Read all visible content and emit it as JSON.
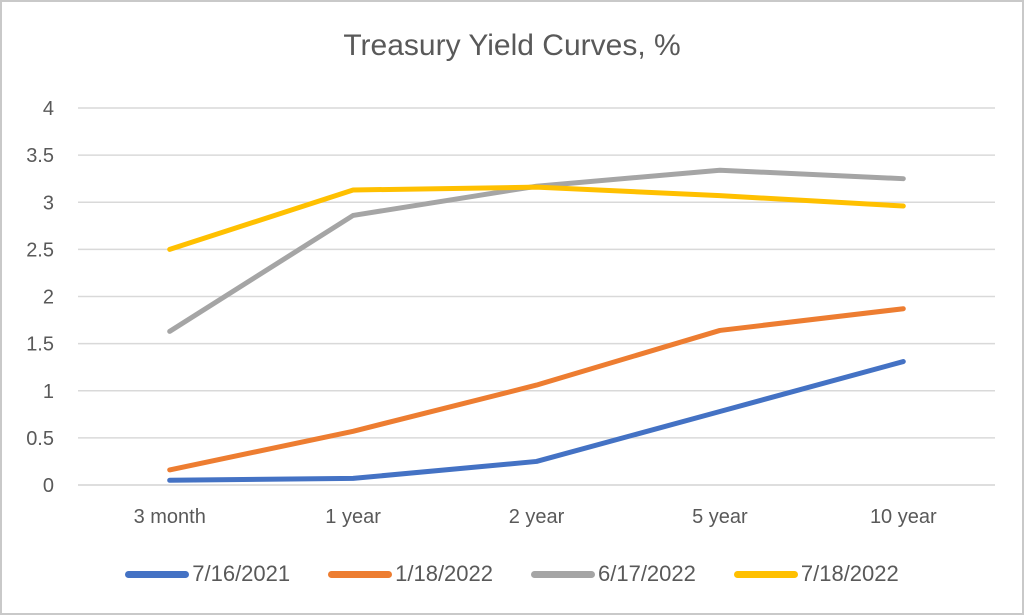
{
  "window": {
    "background": "#ffffff",
    "border_color": "#c9c9c9"
  },
  "chart_data": {
    "type": "line",
    "title": "Treasury Yield Curves, %",
    "categories": [
      "3 month",
      "1 year",
      "2 year",
      "5 year",
      "10 year"
    ],
    "series": [
      {
        "name": "7/16/2021",
        "color": "#4472C4",
        "values": [
          0.05,
          0.07,
          0.25,
          0.78,
          1.31
        ]
      },
      {
        "name": "1/18/2022",
        "color": "#ED7D31",
        "values": [
          0.16,
          0.57,
          1.06,
          1.64,
          1.87
        ]
      },
      {
        "name": "6/17/2022",
        "color": "#A5A5A5",
        "values": [
          1.63,
          2.86,
          3.17,
          3.34,
          3.25
        ]
      },
      {
        "name": "7/18/2022",
        "color": "#FFC000",
        "values": [
          2.5,
          3.13,
          3.16,
          3.07,
          2.96
        ]
      }
    ],
    "ylim": [
      0,
      4
    ],
    "ytick_interval": 0.5,
    "ytick_labels": [
      "4",
      "3.5",
      "3",
      "2.5",
      "2",
      "1.5",
      "1",
      "0.5",
      "0"
    ],
    "xlabel": "",
    "ylabel": "",
    "grid": "horizontal",
    "gridline_color": "#d9d9d9",
    "axis_line_color": "#d9d9d9",
    "text_color": "#595959",
    "legend_position": "bottom"
  }
}
